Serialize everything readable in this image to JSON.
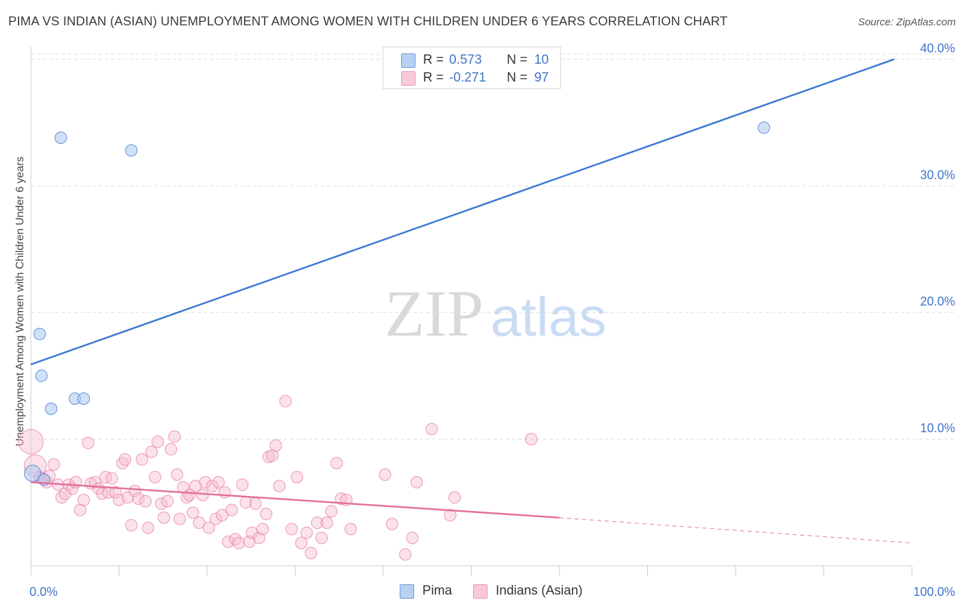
{
  "title": "PIMA VS INDIAN (ASIAN) UNEMPLOYMENT AMONG WOMEN WITH CHILDREN UNDER 6 YEARS CORRELATION CHART",
  "source": "Source: ZipAtlas.com",
  "watermark": {
    "zip": "ZIP",
    "atlas": "atlas"
  },
  "legend_top": {
    "rows": [
      {
        "r_label": "R =",
        "r_value": "0.573",
        "n_label": "N =",
        "n_value": "10"
      },
      {
        "r_label": "R =",
        "r_value": "-0.271",
        "n_label": "N =",
        "n_value": "97"
      }
    ]
  },
  "legend_bottom": [
    "Pima",
    "Indians (Asian)"
  ],
  "colors": {
    "pima_fill": "#aac8f0",
    "pima_stroke": "#4a7fd0",
    "pima_line": "#3b78d4",
    "indian_fill": "#f6bcd0",
    "indian_stroke": "#e77fa4",
    "indian_line": "#e4709b",
    "tick_label": "#3f74c7",
    "grid": "#dedede"
  },
  "chart_data": {
    "type": "scatter",
    "title": "PIMA VS INDIAN (ASIAN) UNEMPLOYMENT AMONG WOMEN WITH CHILDREN UNDER 6 YEARS CORRELATION CHART",
    "xlabel": "",
    "ylabel": "Unemployment Among Women with Children Under 6 years",
    "xlim": [
      0,
      100
    ],
    "ylim": [
      0,
      41
    ],
    "x_tick_labels": [
      {
        "value": 0,
        "label": "0.0%"
      },
      {
        "value": 100,
        "label": "100.0%"
      }
    ],
    "y_ticks": [
      {
        "value": 10,
        "label": "10.0%"
      },
      {
        "value": 20,
        "label": "20.0%"
      },
      {
        "value": 30,
        "label": "30.0%"
      },
      {
        "value": 40,
        "label": "40.0%"
      }
    ],
    "grid": "horizontal dashed",
    "legend": "top-center",
    "series": [
      {
        "name": "Pima",
        "points": [
          [
            3.4,
            33.8
          ],
          [
            11.4,
            32.8
          ],
          [
            1.0,
            18.3
          ],
          [
            1.2,
            15.0
          ],
          [
            2.3,
            12.4
          ],
          [
            5.0,
            13.2
          ],
          [
            6.0,
            13.2
          ],
          [
            0.2,
            7.3
          ],
          [
            1.5,
            6.8
          ],
          [
            83.2,
            34.6
          ]
        ],
        "trend": {
          "x": [
            0,
            98
          ],
          "y": [
            15.9,
            40.0
          ]
        }
      },
      {
        "name": "Indians (Asian)",
        "points": [
          [
            0.0,
            9.8
          ],
          [
            0.5,
            7.9
          ],
          [
            1.0,
            7.0
          ],
          [
            1.3,
            6.9
          ],
          [
            1.8,
            6.6
          ],
          [
            2.1,
            7.1
          ],
          [
            2.6,
            8.0
          ],
          [
            3.1,
            6.4
          ],
          [
            3.5,
            5.4
          ],
          [
            3.9,
            5.7
          ],
          [
            4.3,
            6.4
          ],
          [
            4.7,
            6.1
          ],
          [
            5.1,
            6.6
          ],
          [
            5.6,
            4.4
          ],
          [
            6.0,
            5.2
          ],
          [
            6.5,
            9.7
          ],
          [
            6.8,
            6.5
          ],
          [
            7.3,
            6.6
          ],
          [
            7.7,
            6.1
          ],
          [
            8.1,
            5.7
          ],
          [
            8.5,
            7.0
          ],
          [
            8.8,
            5.8
          ],
          [
            9.2,
            6.9
          ],
          [
            9.6,
            5.8
          ],
          [
            10.0,
            5.2
          ],
          [
            10.4,
            8.1
          ],
          [
            10.7,
            8.4
          ],
          [
            11.0,
            5.4
          ],
          [
            11.4,
            3.2
          ],
          [
            11.8,
            5.9
          ],
          [
            12.2,
            5.3
          ],
          [
            12.6,
            8.4
          ],
          [
            13.0,
            5.1
          ],
          [
            13.3,
            3.0
          ],
          [
            13.7,
            9.0
          ],
          [
            14.1,
            7.0
          ],
          [
            14.4,
            9.8
          ],
          [
            14.8,
            4.9
          ],
          [
            15.1,
            3.8
          ],
          [
            15.5,
            5.1
          ],
          [
            15.9,
            9.2
          ],
          [
            16.3,
            10.2
          ],
          [
            16.6,
            7.2
          ],
          [
            16.9,
            3.7
          ],
          [
            17.3,
            6.2
          ],
          [
            17.7,
            5.4
          ],
          [
            18.0,
            5.6
          ],
          [
            18.4,
            4.2
          ],
          [
            18.7,
            6.3
          ],
          [
            19.1,
            3.4
          ],
          [
            19.5,
            5.6
          ],
          [
            19.8,
            6.6
          ],
          [
            20.2,
            3.0
          ],
          [
            20.6,
            6.3
          ],
          [
            21.0,
            3.7
          ],
          [
            21.3,
            6.6
          ],
          [
            21.7,
            4.0
          ],
          [
            22.0,
            5.8
          ],
          [
            22.4,
            1.9
          ],
          [
            22.8,
            4.4
          ],
          [
            23.2,
            2.1
          ],
          [
            23.6,
            1.8
          ],
          [
            24.0,
            6.4
          ],
          [
            24.4,
            5.0
          ],
          [
            24.8,
            1.9
          ],
          [
            25.1,
            2.6
          ],
          [
            25.5,
            4.9
          ],
          [
            25.9,
            2.2
          ],
          [
            26.3,
            2.9
          ],
          [
            26.7,
            4.1
          ],
          [
            27.0,
            8.6
          ],
          [
            27.4,
            8.7
          ],
          [
            27.8,
            9.5
          ],
          [
            28.2,
            6.3
          ],
          [
            28.9,
            13.0
          ],
          [
            29.6,
            2.9
          ],
          [
            30.2,
            7.0
          ],
          [
            30.7,
            1.8
          ],
          [
            31.3,
            2.6
          ],
          [
            31.8,
            1.0
          ],
          [
            32.5,
            3.4
          ],
          [
            33.0,
            2.2
          ],
          [
            33.6,
            3.4
          ],
          [
            34.1,
            4.3
          ],
          [
            34.7,
            8.1
          ],
          [
            35.2,
            5.3
          ],
          [
            35.8,
            5.2
          ],
          [
            36.3,
            2.9
          ],
          [
            40.2,
            7.2
          ],
          [
            41.0,
            3.3
          ],
          [
            42.5,
            0.9
          ],
          [
            43.3,
            2.2
          ],
          [
            43.8,
            6.6
          ],
          [
            45.5,
            10.8
          ],
          [
            47.6,
            4.0
          ],
          [
            48.1,
            5.4
          ],
          [
            56.8,
            10.0
          ]
        ],
        "trend": {
          "x": [
            0,
            60
          ],
          "y": [
            6.6,
            3.8
          ]
        },
        "trend_extended": {
          "x": [
            60,
            100
          ],
          "y": [
            3.8,
            1.8
          ]
        }
      }
    ]
  }
}
